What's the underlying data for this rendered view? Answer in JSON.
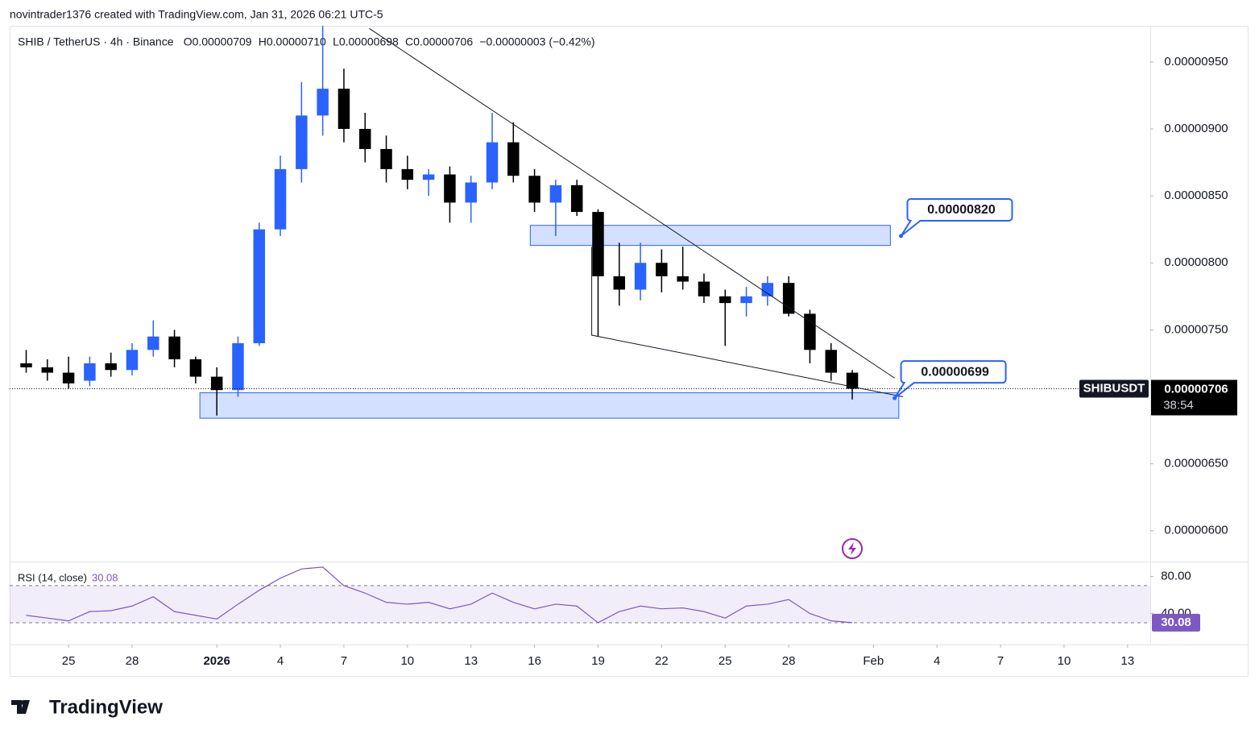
{
  "header": {
    "credit": "novintrader1376 created with TradingView.com, Jan 31, 2026 06:21 UTC-5",
    "symbol": "SHIB / TetherUS · 4h · Binance",
    "ohlc": [
      "O0.00000709",
      "H0.00000710",
      "L0.00000698",
      "C0.00000706"
    ],
    "change": "−0.00000003 (−0.42%)"
  },
  "last_tag": {
    "symbol": "SHIBUSDT",
    "price": "0.00000706",
    "countdown": "38:54"
  },
  "footer": {
    "brand": "TradingView"
  },
  "chart_data": [
    {
      "type": "candlestick",
      "x": [
        23,
        24,
        25,
        26,
        27,
        28,
        29,
        30,
        31,
        32,
        33,
        34,
        35,
        36,
        37,
        38,
        39,
        40,
        41,
        42,
        43,
        44,
        45,
        46,
        47,
        48,
        49,
        50,
        51,
        52,
        53,
        54,
        55,
        56,
        57,
        58,
        59,
        60,
        61,
        62
      ],
      "series": [
        {
          "name": "SHIBUSDT",
          "up_color": "#2962ff",
          "down_color": "#000000",
          "open": [
            7.25e-06,
            7.22e-06,
            7.18e-06,
            7.12e-06,
            7.25e-06,
            7.2e-06,
            7.35e-06,
            7.45e-06,
            7.28e-06,
            7.15e-06,
            7.05e-06,
            7.4e-06,
            8.25e-06,
            8.7e-06,
            9.1e-06,
            9.3e-06,
            9e-06,
            8.85e-06,
            8.7e-06,
            8.62e-06,
            8.66e-06,
            8.45e-06,
            8.6e-06,
            8.9e-06,
            8.65e-06,
            8.45e-06,
            8.58e-06,
            8.38e-06,
            7.9e-06,
            7.8e-06,
            8e-06,
            7.9e-06,
            7.86e-06,
            7.75e-06,
            7.7e-06,
            7.75e-06,
            7.85e-06,
            7.62e-06,
            7.35e-06,
            7.18e-06
          ],
          "high": [
            7.35e-06,
            7.28e-06,
            7.3e-06,
            7.3e-06,
            7.33e-06,
            7.4e-06,
            7.57e-06,
            7.5e-06,
            7.3e-06,
            7.22e-06,
            7.45e-06,
            8.3e-06,
            8.8e-06,
            9.35e-06,
            9.77e-06,
            9.45e-06,
            9.12e-06,
            8.95e-06,
            8.8e-06,
            8.7e-06,
            8.72e-06,
            8.65e-06,
            9.12e-06,
            9.05e-06,
            8.7e-06,
            8.62e-06,
            8.62e-06,
            8.4e-06,
            8.15e-06,
            8.15e-06,
            8.1e-06,
            8.12e-06,
            7.92e-06,
            7.8e-06,
            7.82e-06,
            7.9e-06,
            7.9e-06,
            7.65e-06,
            7.4e-06,
            7.2e-06
          ],
          "low": [
            7.18e-06,
            7.12e-06,
            7.06e-06,
            7.08e-06,
            7.15e-06,
            7.16e-06,
            7.3e-06,
            7.22e-06,
            7.1e-06,
            6.86e-06,
            7e-06,
            7.38e-06,
            8.2e-06,
            8.6e-06,
            8.95e-06,
            8.9e-06,
            8.75e-06,
            8.6e-06,
            8.55e-06,
            8.5e-06,
            8.3e-06,
            8.3e-06,
            8.55e-06,
            8.6e-06,
            8.38e-06,
            8.2e-06,
            8.35e-06,
            7.45e-06,
            7.68e-06,
            7.72e-06,
            7.78e-06,
            7.8e-06,
            7.7e-06,
            7.38e-06,
            7.6e-06,
            7.68e-06,
            7.6e-06,
            7.25e-06,
            7.12e-06,
            6.98e-06
          ],
          "close": [
            7.22e-06,
            7.18e-06,
            7.1e-06,
            7.25e-06,
            7.2e-06,
            7.35e-06,
            7.45e-06,
            7.28e-06,
            7.15e-06,
            7.05e-06,
            7.4e-06,
            8.25e-06,
            8.7e-06,
            9.1e-06,
            9.3e-06,
            9e-06,
            8.85e-06,
            8.7e-06,
            8.62e-06,
            8.66e-06,
            8.45e-06,
            8.6e-06,
            8.9e-06,
            8.65e-06,
            8.45e-06,
            8.58e-06,
            8.38e-06,
            7.9e-06,
            7.8e-06,
            8e-06,
            7.9e-06,
            7.86e-06,
            7.75e-06,
            7.7e-06,
            7.75e-06,
            7.85e-06,
            7.62e-06,
            7.35e-06,
            7.18e-06,
            7.06e-06
          ]
        }
      ],
      "xlim": [
        22.22,
        76.07
      ],
      "xticks": [
        {
          "value": 25,
          "label": "25"
        },
        {
          "value": 28,
          "label": "28"
        },
        {
          "value": 32,
          "label": "2026"
        },
        {
          "value": 35,
          "label": "4"
        },
        {
          "value": 38,
          "label": "7"
        },
        {
          "value": 41,
          "label": "10"
        },
        {
          "value": 44,
          "label": "13"
        },
        {
          "value": 47,
          "label": "16"
        },
        {
          "value": 50,
          "label": "19"
        },
        {
          "value": 53,
          "label": "22"
        },
        {
          "value": 56,
          "label": "25"
        },
        {
          "value": 59,
          "label": "28"
        },
        {
          "value": 63,
          "label": "Feb"
        },
        {
          "value": 66,
          "label": "4"
        },
        {
          "value": 69,
          "label": "7"
        },
        {
          "value": 72,
          "label": "10"
        },
        {
          "value": 75,
          "label": "13"
        }
      ],
      "ylim": [
        5.77e-06,
        9.77e-06
      ],
      "yticks": [
        {
          "value": 9.5e-06,
          "label": "0.00000950"
        },
        {
          "value": 9e-06,
          "label": "0.00000900"
        },
        {
          "value": 8.5e-06,
          "label": "0.00000850"
        },
        {
          "value": 8e-06,
          "label": "0.00000800"
        },
        {
          "value": 7.5e-06,
          "label": "0.00000750"
        },
        {
          "value": 6.5e-06,
          "label": "0.00000650"
        },
        {
          "value": 6e-06,
          "label": "0.00000600"
        }
      ],
      "zones": [
        {
          "x": [
            46.8,
            63.8
          ],
          "y": [
            8.13e-06,
            8.28e-06
          ],
          "color": "#2962ff"
        },
        {
          "x": [
            31.2,
            64.2
          ],
          "y": [
            6.84e-06,
            7.03e-06
          ],
          "color": "#2962ff"
        }
      ],
      "trendlines": [
        {
          "x": [
            39.2,
            64.0
          ],
          "y": [
            9.75e-06,
            7.14e-06
          ]
        },
        {
          "x": [
            49.7,
            49.7,
            64.4
          ],
          "y": [
            8.12e-06,
            7.46e-06,
            7e-06
          ]
        }
      ],
      "callouts": [
        {
          "x": 64.3,
          "y": 8.2e-06,
          "label": "0.00000820"
        },
        {
          "x": 64.0,
          "y": 6.99e-06,
          "label": "0.00000699"
        }
      ]
    },
    {
      "type": "line",
      "title": "RSI (14, close)",
      "last_label": "30.08",
      "color": "#7e57c2",
      "x": [
        23,
        24,
        25,
        26,
        27,
        28,
        29,
        30,
        31,
        32,
        33,
        34,
        35,
        36,
        37,
        38,
        39,
        40,
        41,
        42,
        43,
        44,
        45,
        46,
        47,
        48,
        49,
        50,
        51,
        52,
        53,
        54,
        55,
        56,
        57,
        58,
        59,
        60,
        61,
        62
      ],
      "values": [
        38,
        35,
        32,
        42,
        43,
        48,
        58,
        42,
        38,
        34,
        50,
        65,
        78,
        88,
        90,
        70,
        62,
        52,
        50,
        52,
        45,
        50,
        62,
        52,
        45,
        50,
        48,
        30,
        42,
        48,
        45,
        46,
        42,
        35,
        48,
        50,
        55,
        40,
        32,
        30.08
      ],
      "ylim": [
        6.5,
        96
      ],
      "yticks": [
        {
          "value": 80,
          "label": "80.00"
        },
        {
          "value": 40,
          "label": "40.00"
        }
      ],
      "band": [
        30,
        70
      ],
      "band_color": "#7e57c2"
    }
  ]
}
